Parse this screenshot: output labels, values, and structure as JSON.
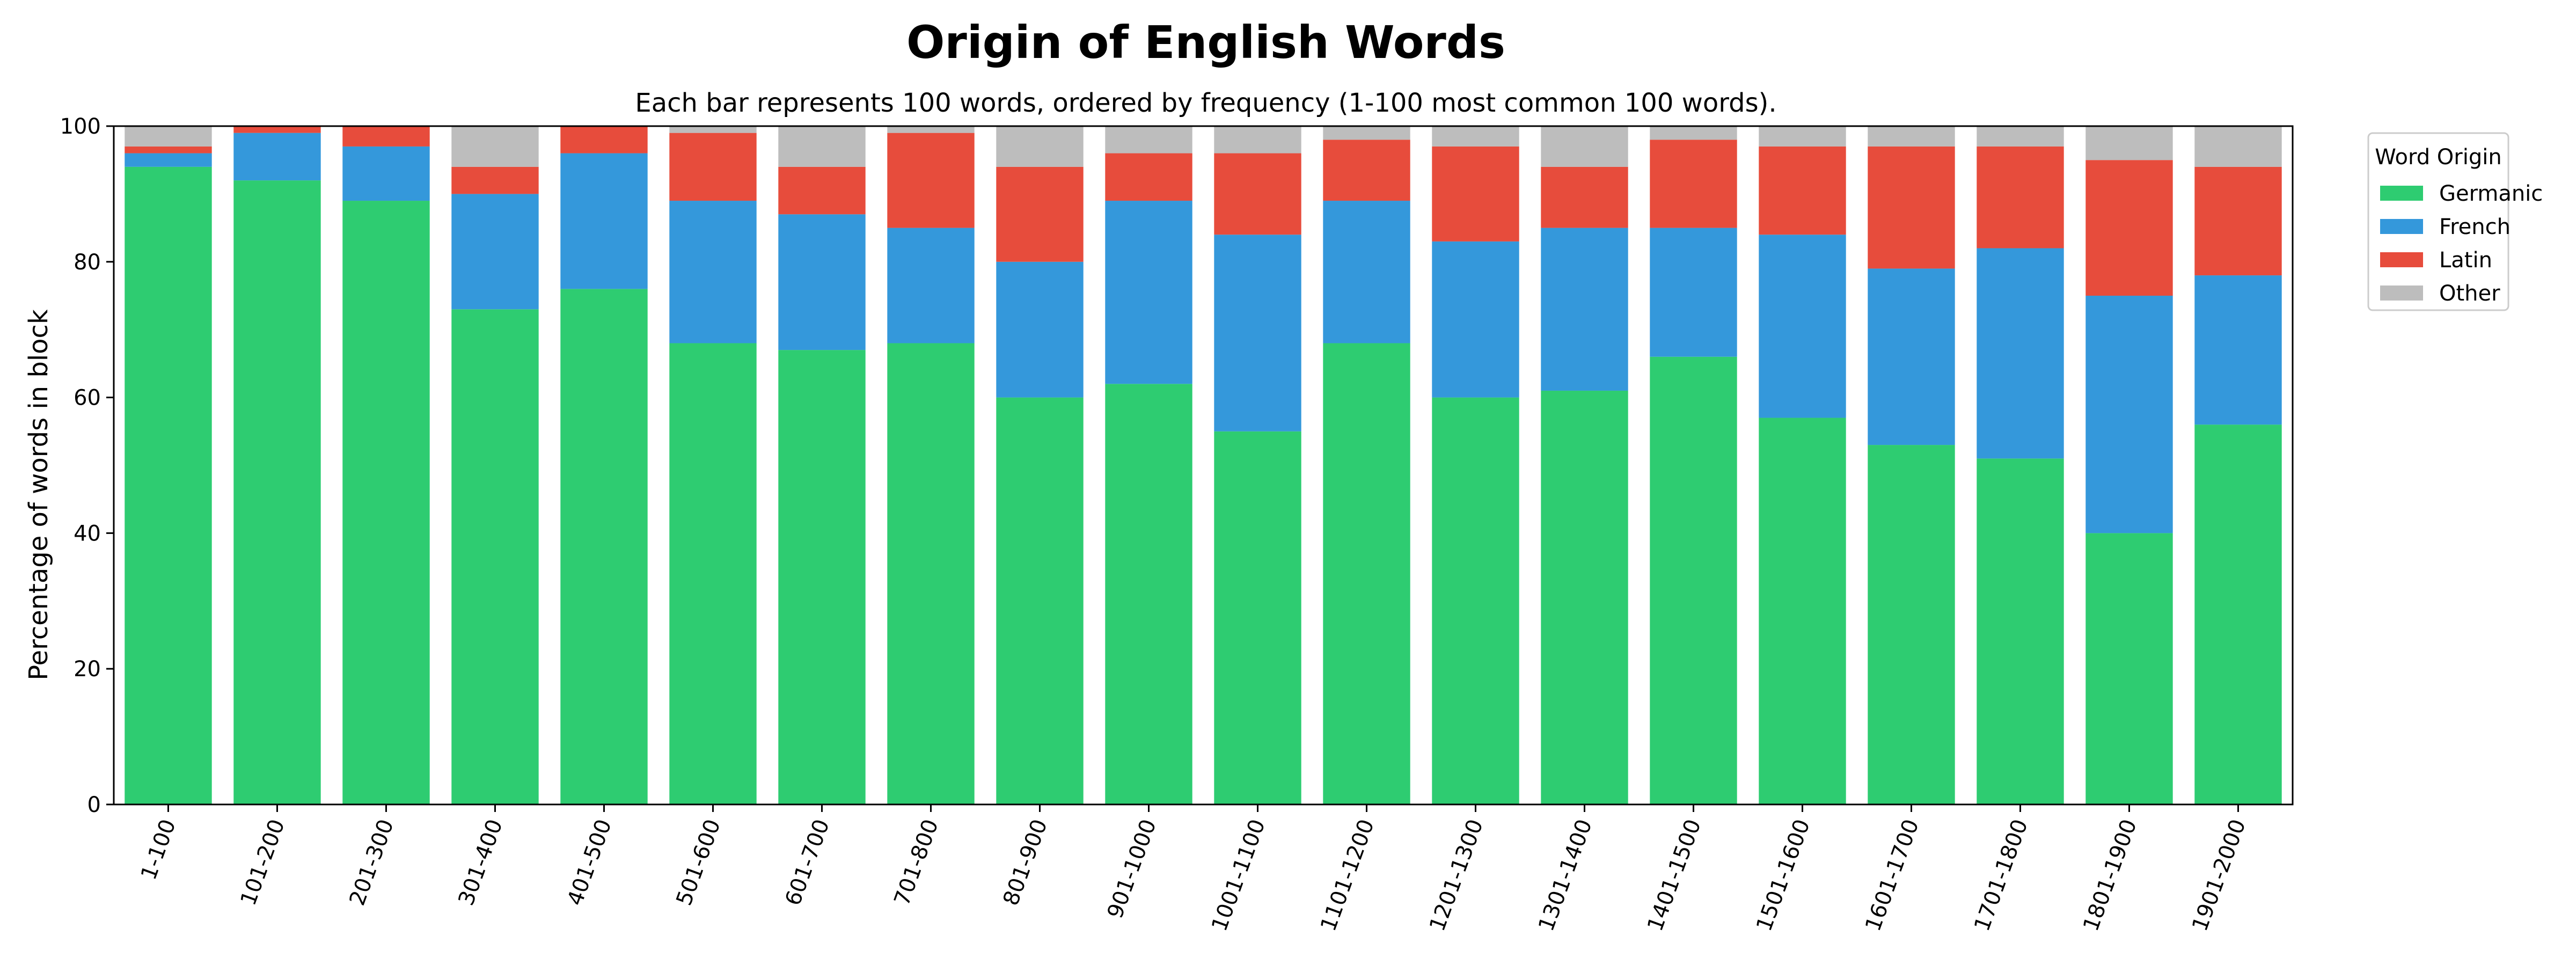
{
  "chart_data": {
    "type": "bar",
    "stacked": true,
    "title": "Origin of English Words",
    "subtitle": "Each bar represents 100 words, ordered by frequency (1-100 most common 100 words).",
    "xlabel": "",
    "ylabel": "Percentage of words in block",
    "ylim": [
      0,
      100
    ],
    "yticks": [
      0,
      20,
      40,
      60,
      80,
      100
    ],
    "grid": false,
    "legend": {
      "title": "Word Origin",
      "placement": "top-right outside"
    },
    "categories": [
      "1-100",
      "101-200",
      "201-300",
      "301-400",
      "401-500",
      "501-600",
      "601-700",
      "701-800",
      "801-900",
      "901-1000",
      "1001-1100",
      "1101-1200",
      "1201-1300",
      "1301-1400",
      "1401-1500",
      "1501-1600",
      "1601-1700",
      "1701-1800",
      "1801-1900",
      "1901-2000"
    ],
    "series": [
      {
        "name": "Germanic",
        "color": "#2ecc71",
        "values": [
          94,
          92,
          89,
          73,
          76,
          68,
          67,
          68,
          60,
          62,
          55,
          68,
          60,
          61,
          66,
          57,
          53,
          51,
          40,
          56
        ]
      },
      {
        "name": "French",
        "color": "#3498db",
        "values": [
          2,
          7,
          8,
          17,
          20,
          21,
          20,
          17,
          20,
          27,
          29,
          21,
          23,
          24,
          19,
          27,
          26,
          31,
          35,
          22
        ]
      },
      {
        "name": "Latin",
        "color": "#e74c3c",
        "values": [
          1,
          1,
          3,
          4,
          4,
          10,
          7,
          14,
          14,
          7,
          12,
          9,
          14,
          9,
          13,
          13,
          18,
          15,
          20,
          16
        ]
      },
      {
        "name": "Other",
        "color": "#bdbdbd",
        "values": [
          3,
          0,
          0,
          6,
          0,
          1,
          6,
          1,
          6,
          4,
          4,
          2,
          3,
          6,
          2,
          3,
          3,
          3,
          5,
          6
        ]
      }
    ]
  }
}
